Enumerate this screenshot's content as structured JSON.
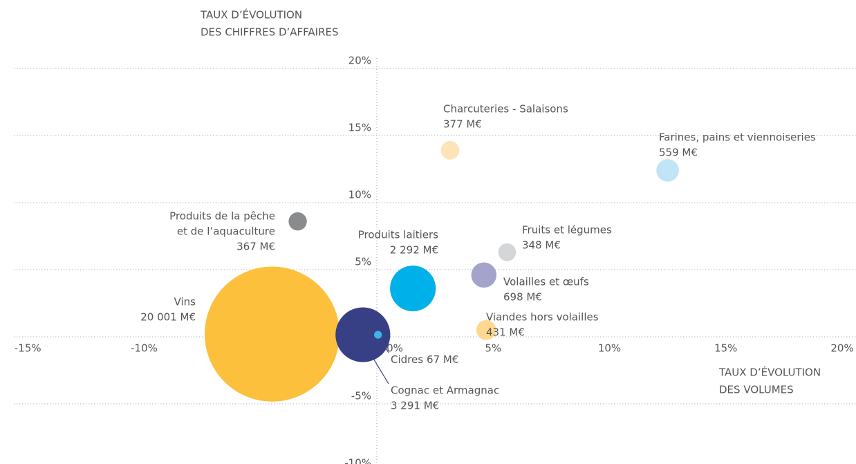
{
  "chart_data": {
    "type": "bubble",
    "y_label": [
      "TAUX D’ÉVOLUTION",
      "DES CHIFFRES D’AFFAIRES"
    ],
    "x_label": [
      "TAUX D’ÉVOLUTION",
      "DES VOLUMES"
    ],
    "xlim": [
      -15,
      20
    ],
    "xticks": [
      {
        "value": -15,
        "label": "-15%"
      },
      {
        "value": -10,
        "label": "-10%"
      },
      {
        "value": -5,
        "label": "-5%"
      },
      {
        "value": 0,
        "label": "0%"
      },
      {
        "value": 5,
        "label": "5%"
      },
      {
        "value": 10,
        "label": "10%"
      },
      {
        "value": 15,
        "label": "15%"
      },
      {
        "value": 20,
        "label": "20%"
      }
    ],
    "ylim": [
      -10,
      20
    ],
    "yticks": [
      {
        "value": -10,
        "label": "-10%"
      },
      {
        "value": -5,
        "label": "-5%"
      },
      {
        "value": 0,
        "label": "0%"
      },
      {
        "value": 5,
        "label": "5%"
      },
      {
        "value": 10,
        "label": "10%"
      },
      {
        "value": 15,
        "label": "15%"
      },
      {
        "value": 20,
        "label": "20%"
      }
    ],
    "grid": true,
    "series": [
      {
        "name": [
          "Charcuteries - Salaisons"
        ],
        "color": "#fde3b8",
        "x": 3.15,
        "y": 13.9,
        "size": 377,
        "value_label": "377 M€"
      },
      {
        "name": [
          "Farines, pains et viennoiseries"
        ],
        "color": "#c2e4f7",
        "x": 12.5,
        "y": 12.4,
        "size": 559,
        "value_label": "559 M€"
      },
      {
        "name": [
          "Produits de la pêche",
          "et de l’aquaculture"
        ],
        "color": "#8a8b8d",
        "x": -3.4,
        "y": 8.6,
        "size": 367,
        "value_label": "367 M€"
      },
      {
        "name": [
          "Fruits et légumes"
        ],
        "color": "#d5d6d8",
        "x": 5.6,
        "y": 6.3,
        "size": 348,
        "value_label": "348 M€"
      },
      {
        "name": [
          "Produits laitiers"
        ],
        "color": "#00b0e8",
        "x": 1.55,
        "y": 3.6,
        "size": 2292,
        "value_label": "2 292 M€"
      },
      {
        "name": [
          "Volailles et œufs"
        ],
        "color": "#a3a3cc",
        "x": 4.6,
        "y": 4.6,
        "size": 698,
        "value_label": "698 M€"
      },
      {
        "name": [
          "Viandes hors volailles"
        ],
        "color": "#fdd88e",
        "x": 4.7,
        "y": 0.5,
        "size": 431,
        "value_label": "431 M€"
      },
      {
        "name": [
          "Vins"
        ],
        "color": "#fcc03c",
        "x": -4.5,
        "y": 0.2,
        "size": 20001,
        "value_label": "20 001 M€"
      },
      {
        "name": [
          "Cognac et Armagnac"
        ],
        "color": "#373f85",
        "x": -0.6,
        "y": 0.15,
        "size": 3291,
        "value_label": "3 291 M€"
      },
      {
        "name": [
          "Cidres"
        ],
        "color": "#3db5e6",
        "x": 0.05,
        "y": 0.15,
        "size": 67,
        "value_label": "67 M€"
      }
    ]
  }
}
